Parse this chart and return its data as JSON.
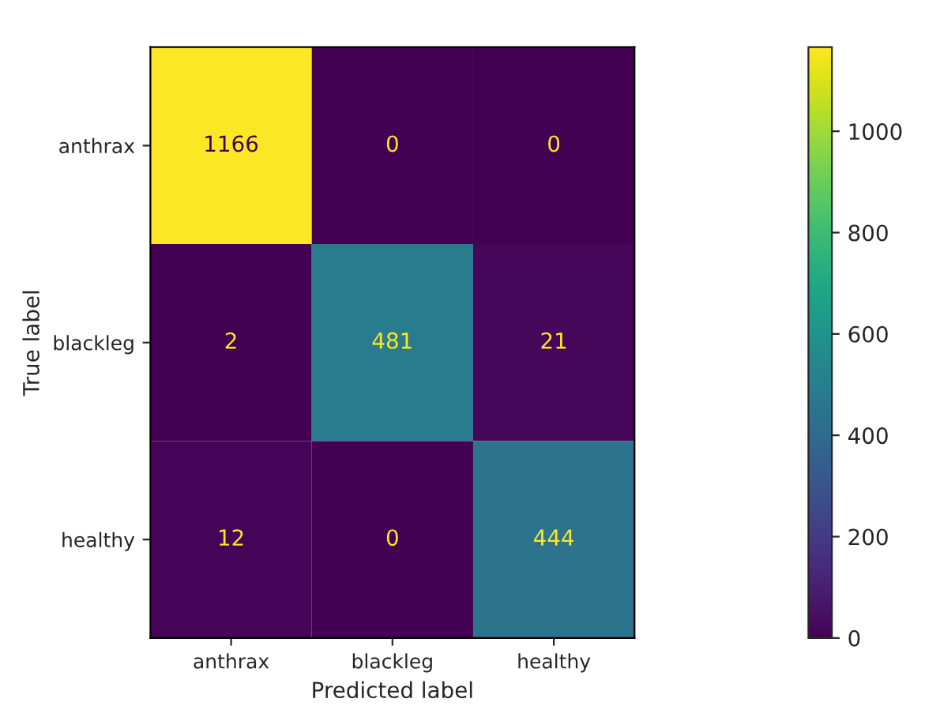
{
  "chart_data": {
    "type": "heatmap",
    "xlabel": "Predicted label",
    "ylabel": "True label",
    "categories": [
      "anthrax",
      "blackleg",
      "healthy"
    ],
    "y_categories": [
      "anthrax",
      "blackleg",
      "healthy"
    ],
    "cells": [
      [
        1166,
        0,
        0
      ],
      [
        2,
        481,
        21
      ],
      [
        12,
        0,
        444
      ]
    ],
    "data_labels": true,
    "clim": [
      0,
      1166
    ],
    "cticks": [
      0,
      200,
      400,
      600,
      800,
      1000
    ]
  }
}
